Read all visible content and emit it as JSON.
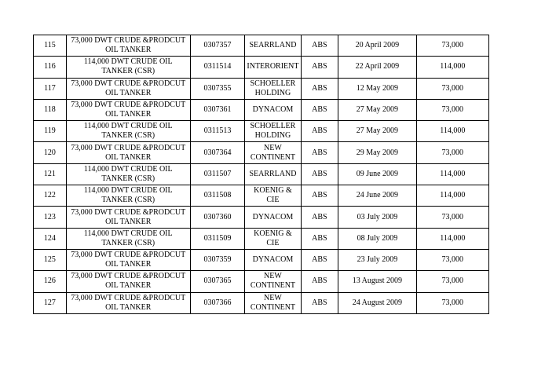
{
  "table": {
    "rows": [
      [
        "115",
        "73,000 DWT CRUDE &PRODCUT OIL TANKER",
        "0307357",
        "SEARRLAND",
        "ABS",
        "20 April 2009",
        "73,000"
      ],
      [
        "116",
        "114,000 DWT CRUDE OIL TANKER (CSR)",
        "0311514",
        "INTERORIENT",
        "ABS",
        "22 April 2009",
        "114,000"
      ],
      [
        "117",
        "73,000 DWT CRUDE &PRODCUT OIL TANKER",
        "0307355",
        "SCHOELLER HOLDING",
        "ABS",
        "12 May 2009",
        "73,000"
      ],
      [
        "118",
        "73,000 DWT CRUDE &PRODCUT OIL TANKER",
        "0307361",
        "DYNACOM",
        "ABS",
        "27 May 2009",
        "73,000"
      ],
      [
        "119",
        "114,000 DWT CRUDE OIL TANKER (CSR)",
        "0311513",
        "SCHOELLER HOLDING",
        "ABS",
        "27 May 2009",
        "114,000"
      ],
      [
        "120",
        "73,000 DWT CRUDE &PRODCUT OIL TANKER",
        "0307364",
        "NEW CONTINENT",
        "ABS",
        "29 May 2009",
        "73,000"
      ],
      [
        "121",
        "114,000 DWT CRUDE OIL TANKER (CSR)",
        "0311507",
        "SEARRLAND",
        "ABS",
        "09 June 2009",
        "114,000"
      ],
      [
        "122",
        "114,000 DWT CRUDE OIL TANKER (CSR)",
        "0311508",
        "KOENIG & CIE",
        "ABS",
        "24 June 2009",
        "114,000"
      ],
      [
        "123",
        "73,000 DWT CRUDE &PRODCUT OIL TANKER",
        "0307360",
        "DYNACOM",
        "ABS",
        "03 July 2009",
        "73,000"
      ],
      [
        "124",
        "114,000 DWT CRUDE OIL TANKER (CSR)",
        "0311509",
        "KOENIG & CIE",
        "ABS",
        "08 July 2009",
        "114,000"
      ],
      [
        "125",
        "73,000 DWT CRUDE &PRODCUT OIL TANKER",
        "0307359",
        "DYNACOM",
        "ABS",
        "23 July 2009",
        "73,000"
      ],
      [
        "126",
        "73,000 DWT CRUDE &PRODCUT OIL TANKER",
        "0307365",
        "NEW CONTINENT",
        "ABS",
        "13 August 2009",
        "73,000"
      ],
      [
        "127",
        "73,000 DWT CRUDE &PRODCUT OIL TANKER",
        "0307366",
        "NEW CONTINENT",
        "ABS",
        "24 August 2009",
        "73,000"
      ]
    ]
  }
}
